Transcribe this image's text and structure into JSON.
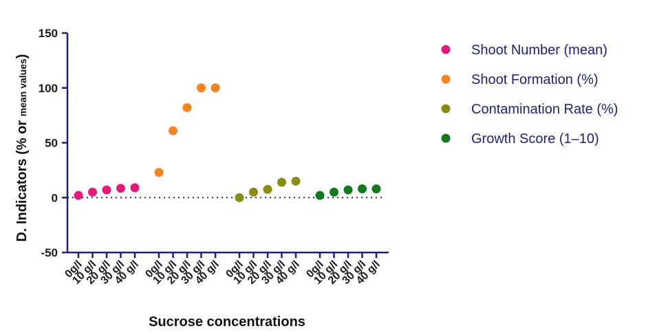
{
  "chart_data": {
    "type": "scatter",
    "ylabel_main": "D. Indicators (% or ",
    "ylabel_small": "mean values",
    "ylabel_end": ")",
    "xlabel": "Sucrose concentrations",
    "ylim": [
      -50,
      150
    ],
    "yticks": [
      -50,
      0,
      50,
      100,
      150
    ],
    "categories": [
      "0g/l",
      "10 g/l",
      "20 g/l",
      "30 g/l",
      "40 g/l"
    ],
    "reference_line": 0,
    "grid": false,
    "legend_position": "right",
    "series": [
      {
        "name": "Shoot Number (mean)",
        "color": "#e8187a",
        "values": [
          2,
          5,
          7,
          8.5,
          9
        ]
      },
      {
        "name": "Shoot Formation (%)",
        "color": "#f7841c",
        "values": [
          23,
          61,
          82,
          100,
          100
        ]
      },
      {
        "name": "Contamination Rate (%)",
        "color": "#8c8c12",
        "values": [
          0,
          5,
          7.5,
          14,
          15
        ]
      },
      {
        "name": "Growth Score (1–10)",
        "color": "#117a1a",
        "values": [
          2,
          5,
          7,
          8,
          8
        ]
      }
    ],
    "axis_color": "#1f1f7a",
    "reference_line_color": "#1f1f7a"
  }
}
